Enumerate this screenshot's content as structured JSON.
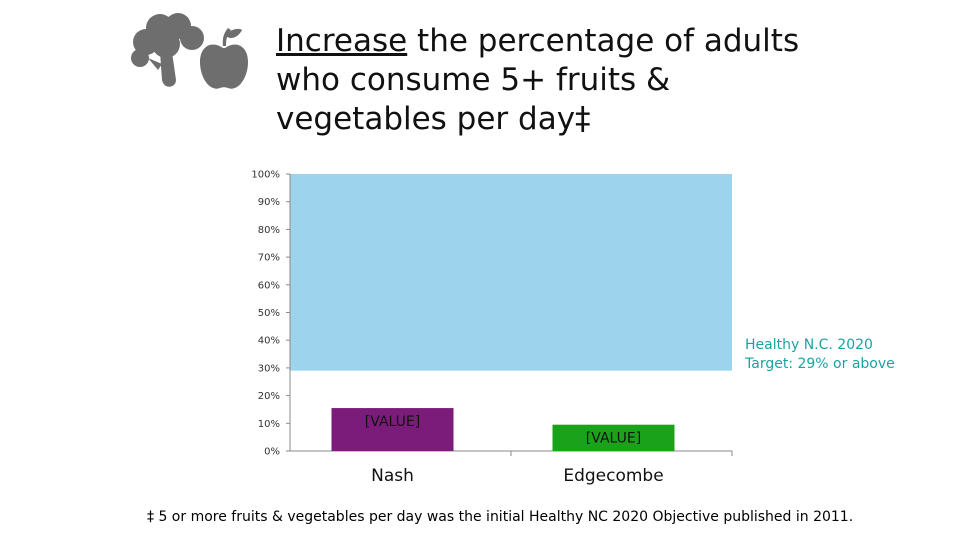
{
  "title": {
    "emphasis": "Increase",
    "rest": " the percentage of adults who consume 5+ fruits & vegetables per day‡"
  },
  "target_note": {
    "line1": "Healthy N.C. 2020",
    "line2": "Target: 29% or above"
  },
  "footnote": "‡ 5 or more fruits & vegetables per day was the initial Healthy NC 2020 Objective published in 2011.",
  "icons": [
    "broccoli-icon",
    "apple-icon"
  ],
  "colors": {
    "target_band": "#9dd3ec",
    "nash": "#7b1c7b",
    "edgecombe": "#1aa31a",
    "target_text": "#1aa3a3",
    "icon": "#6e6e6e"
  },
  "chart_data": {
    "type": "bar",
    "categories": [
      "Nash",
      "Edgecombe"
    ],
    "values": [
      15.5,
      9.5
    ],
    "value_labels": [
      "[VALUE]",
      "[VALUE]"
    ],
    "target_band": [
      29,
      100
    ],
    "ylim": [
      0,
      100
    ],
    "yticks": [
      "0%",
      "10%",
      "20%",
      "30%",
      "40%",
      "50%",
      "60%",
      "70%",
      "80%",
      "90%",
      "100%"
    ],
    "grid": false,
    "legend": "none"
  }
}
